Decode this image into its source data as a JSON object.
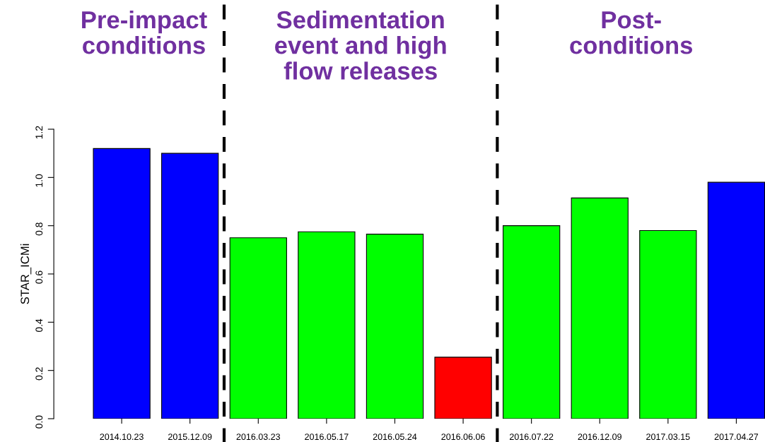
{
  "chart_data": {
    "type": "bar",
    "ylabel": "STAR_ICMi",
    "categories": [
      "2014.10.23",
      "2015.12.09",
      "2016.03.23",
      "2016.05.17",
      "2016.05.24",
      "2016.06.06",
      "2016.07.22",
      "2016.12.09",
      "2017.03.15",
      "2017.04.27"
    ],
    "values": [
      1.12,
      1.1,
      0.75,
      0.775,
      0.765,
      0.255,
      0.8,
      0.915,
      0.78,
      0.98
    ],
    "colors": [
      "#0000ff",
      "#0000ff",
      "#00ff00",
      "#00ff00",
      "#00ff00",
      "#ff0000",
      "#00ff00",
      "#00ff00",
      "#00ff00",
      "#0000ff"
    ],
    "ylim": [
      0,
      1.2
    ],
    "yticks": [
      {
        "value": 0,
        "label": "0.0"
      },
      0.2,
      0.4,
      0.6,
      0.8,
      {
        "value": 1,
        "label": "1.0"
      },
      1.2
    ],
    "annotations": [
      "Pre-impact\nconditions",
      "Sedimentation\nevent and high\nflow releases",
      "Post-\nconditions"
    ],
    "grid": false,
    "legend": false
  }
}
